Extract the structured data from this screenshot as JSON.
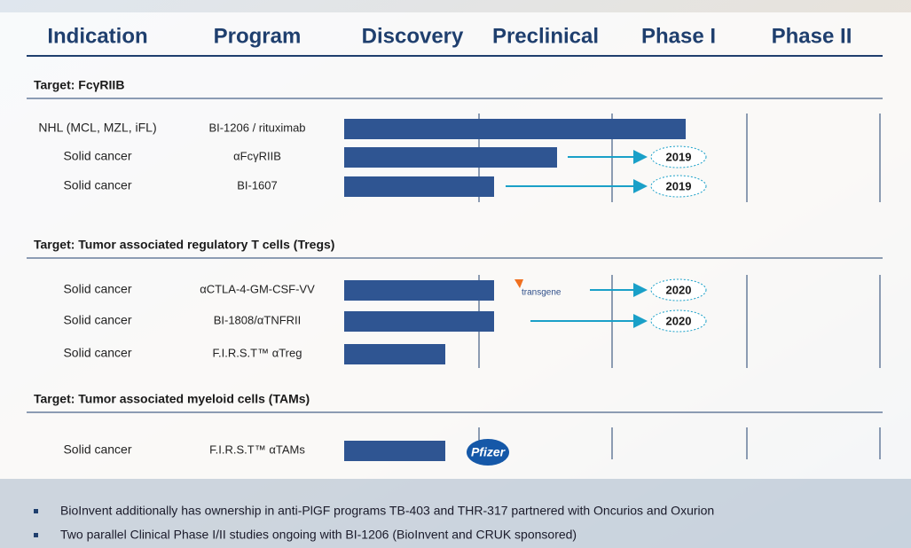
{
  "header": {
    "columns": [
      "Indication",
      "Program",
      "Discovery",
      "Preclinical",
      "Phase I",
      "Phase II"
    ]
  },
  "sections": [
    {
      "title": "Target: FcγRIIB",
      "rows": [
        {
          "indication": "NHL (MCL, MZL, iFL)",
          "program": "BI-1206 / rituximab"
        },
        {
          "indication": "Solid cancer",
          "program": "αFcγRIIB",
          "milestone": "2019"
        },
        {
          "indication": "Solid cancer",
          "program": "BI-1607",
          "milestone": "2019"
        }
      ]
    },
    {
      "title": "Target: Tumor associated regulatory T cells (Tregs)",
      "rows": [
        {
          "indication": "Solid cancer",
          "program": "αCTLA-4-GM-CSF-VV",
          "partner": "transgene",
          "milestone": "2020"
        },
        {
          "indication": "Solid cancer",
          "program": "BI-1808/αTNFRII",
          "milestone": "2020"
        },
        {
          "indication": "Solid cancer",
          "program": "F.I.R.S.T™ αTreg"
        }
      ]
    },
    {
      "title": "Target: Tumor associated myeloid cells (TAMs)",
      "rows": [
        {
          "indication": "Solid cancer",
          "program": "F.I.R.S.T™ αTAMs",
          "partner": "Pfizer"
        }
      ]
    }
  ],
  "bullets": [
    "BioInvent additionally has ownership in anti-PlGF programs TB-403 and THR-317 partnered with Oncurios and Oxurion",
    "Two parallel Clinical Phase I/II studies ongoing with BI-1206 (BioInvent and CRUK sponsored)"
  ]
}
